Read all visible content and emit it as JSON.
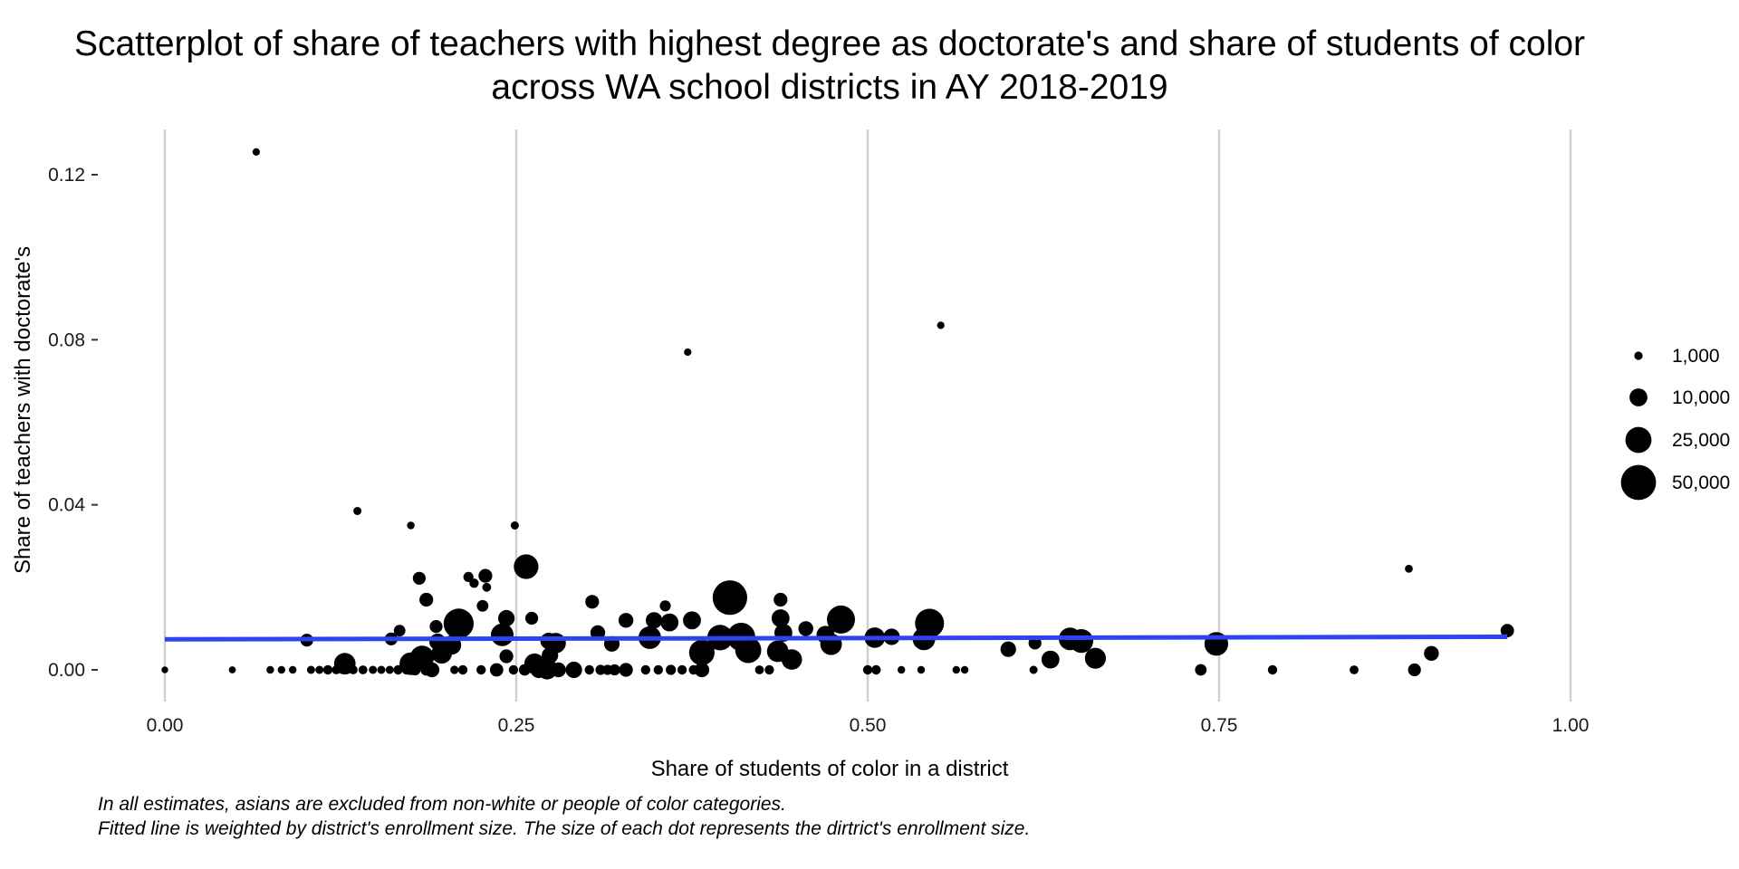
{
  "chart_data": {
    "type": "scatter",
    "title_line1": "Scatterplot of share of teachers with highest degree as doctorate's and share of students of color",
    "title_line2": "across WA school districts in AY 2018-2019",
    "xlabel": "Share of students of color in a district",
    "ylabel": "Share of teachers with doctorate's",
    "xlim": [
      0,
      1
    ],
    "ylim": [
      -0.007,
      0.13
    ],
    "x_ticks": [
      "0.00",
      "0.25",
      "0.50",
      "0.75",
      "1.00"
    ],
    "x_tick_values": [
      0,
      0.25,
      0.5,
      0.75,
      1.0
    ],
    "y_ticks": [
      "0.00",
      "0.04",
      "0.08",
      "0.12"
    ],
    "y_tick_values": [
      0,
      0.04,
      0.08,
      0.12
    ],
    "grid": "vertical major lines only",
    "legend_position": "right",
    "legend": [
      {
        "label": "1,000",
        "size": 1000
      },
      {
        "label": "10,000",
        "size": 10000
      },
      {
        "label": "25,000",
        "size": 25000
      },
      {
        "label": "50,000",
        "size": 50000
      }
    ],
    "fit_line": {
      "x": [
        0,
        0.955
      ],
      "y": [
        0.0074,
        0.008
      ],
      "color": "#2d45f0"
    },
    "caption_line1": "In all estimates, asians are excluded from non-white or people of color categories.",
    "caption_line2": "Fitted line is weighted by district's enrollment size. The size of each dot represents the dirtrict's enrollment size.",
    "points": [
      {
        "x": 0.065,
        "y": 0.1255,
        "size": 600
      },
      {
        "x": 0.552,
        "y": 0.0835,
        "size": 600
      },
      {
        "x": 0.372,
        "y": 0.077,
        "size": 600
      },
      {
        "x": 0.137,
        "y": 0.0385,
        "size": 900
      },
      {
        "x": 0.175,
        "y": 0.035,
        "size": 700
      },
      {
        "x": 0.249,
        "y": 0.035,
        "size": 900
      },
      {
        "x": 0.257,
        "y": 0.025,
        "size": 22000
      },
      {
        "x": 0.181,
        "y": 0.0222,
        "size": 4000
      },
      {
        "x": 0.216,
        "y": 0.0225,
        "size": 2000
      },
      {
        "x": 0.228,
        "y": 0.0228,
        "size": 5000
      },
      {
        "x": 0.22,
        "y": 0.021,
        "size": 1500
      },
      {
        "x": 0.229,
        "y": 0.02,
        "size": 1200
      },
      {
        "x": 0.402,
        "y": 0.0175,
        "size": 48000
      },
      {
        "x": 0.186,
        "y": 0.017,
        "size": 5000
      },
      {
        "x": 0.226,
        "y": 0.0155,
        "size": 3000
      },
      {
        "x": 0.304,
        "y": 0.0165,
        "size": 5000
      },
      {
        "x": 0.438,
        "y": 0.017,
        "size": 5000
      },
      {
        "x": 0.356,
        "y": 0.0155,
        "size": 2500
      },
      {
        "x": 0.209,
        "y": 0.0112,
        "size": 35000
      },
      {
        "x": 0.544,
        "y": 0.0113,
        "size": 32000
      },
      {
        "x": 0.481,
        "y": 0.0122,
        "size": 30000
      },
      {
        "x": 0.243,
        "y": 0.0125,
        "size": 8000
      },
      {
        "x": 0.261,
        "y": 0.0125,
        "size": 4000
      },
      {
        "x": 0.328,
        "y": 0.012,
        "size": 6000
      },
      {
        "x": 0.348,
        "y": 0.012,
        "size": 8000
      },
      {
        "x": 0.359,
        "y": 0.0115,
        "size": 10000
      },
      {
        "x": 0.375,
        "y": 0.012,
        "size": 10000
      },
      {
        "x": 0.438,
        "y": 0.0125,
        "size": 10000
      },
      {
        "x": 0.456,
        "y": 0.01,
        "size": 6000
      },
      {
        "x": 0.193,
        "y": 0.0105,
        "size": 4000
      },
      {
        "x": 0.167,
        "y": 0.0095,
        "size": 3000
      },
      {
        "x": 0.24,
        "y": 0.0085,
        "size": 18000
      },
      {
        "x": 0.308,
        "y": 0.009,
        "size": 6000
      },
      {
        "x": 0.345,
        "y": 0.0078,
        "size": 18000
      },
      {
        "x": 0.395,
        "y": 0.0078,
        "size": 24000
      },
      {
        "x": 0.41,
        "y": 0.008,
        "size": 30000
      },
      {
        "x": 0.44,
        "y": 0.009,
        "size": 10000
      },
      {
        "x": 0.47,
        "y": 0.0085,
        "size": 10000
      },
      {
        "x": 0.505,
        "y": 0.0078,
        "size": 14000
      },
      {
        "x": 0.517,
        "y": 0.008,
        "size": 8000
      },
      {
        "x": 0.54,
        "y": 0.0075,
        "size": 18000
      },
      {
        "x": 0.161,
        "y": 0.0075,
        "size": 4000
      },
      {
        "x": 0.101,
        "y": 0.0072,
        "size": 4000
      },
      {
        "x": 0.194,
        "y": 0.0068,
        "size": 8000
      },
      {
        "x": 0.204,
        "y": 0.006,
        "size": 12000
      },
      {
        "x": 0.273,
        "y": 0.007,
        "size": 8000
      },
      {
        "x": 0.278,
        "y": 0.0065,
        "size": 14000
      },
      {
        "x": 0.318,
        "y": 0.0063,
        "size": 7000
      },
      {
        "x": 0.474,
        "y": 0.0062,
        "size": 16000
      },
      {
        "x": 0.619,
        "y": 0.0065,
        "size": 4000
      },
      {
        "x": 0.644,
        "y": 0.0075,
        "size": 18000
      },
      {
        "x": 0.652,
        "y": 0.007,
        "size": 20000
      },
      {
        "x": 0.748,
        "y": 0.0063,
        "size": 20000
      },
      {
        "x": 0.955,
        "y": 0.0095,
        "size": 4500
      },
      {
        "x": 0.197,
        "y": 0.004,
        "size": 14000
      },
      {
        "x": 0.6,
        "y": 0.005,
        "size": 7000
      },
      {
        "x": 0.415,
        "y": 0.0048,
        "size": 25000
      },
      {
        "x": 0.436,
        "y": 0.0045,
        "size": 16000
      },
      {
        "x": 0.382,
        "y": 0.0042,
        "size": 24000
      },
      {
        "x": 0.183,
        "y": 0.003,
        "size": 20000
      },
      {
        "x": 0.243,
        "y": 0.0033,
        "size": 5000
      },
      {
        "x": 0.274,
        "y": 0.0035,
        "size": 8000
      },
      {
        "x": 0.446,
        "y": 0.0025,
        "size": 14000
      },
      {
        "x": 0.63,
        "y": 0.0025,
        "size": 10000
      },
      {
        "x": 0.662,
        "y": 0.0028,
        "size": 15000
      },
      {
        "x": 0.901,
        "y": 0.004,
        "size": 6000
      },
      {
        "x": 0.885,
        "y": 0.0245,
        "size": 800
      },
      {
        "x": 0.128,
        "y": 0.0015,
        "size": 16000
      },
      {
        "x": 0.175,
        "y": 0.0015,
        "size": 18000
      },
      {
        "x": 0.263,
        "y": 0.0015,
        "size": 14000
      },
      {
        "x": 0.271,
        "y": 0.0012,
        "size": 12000
      },
      {
        "x": 0.0,
        "y": 0.0,
        "size": 400
      },
      {
        "x": 0.048,
        "y": 0.0,
        "size": 500
      },
      {
        "x": 0.075,
        "y": 0.0,
        "size": 700
      },
      {
        "x": 0.083,
        "y": 0.0,
        "size": 700
      },
      {
        "x": 0.091,
        "y": 0.0,
        "size": 700
      },
      {
        "x": 0.104,
        "y": 0.0,
        "size": 900
      },
      {
        "x": 0.11,
        "y": 0.0,
        "size": 900
      },
      {
        "x": 0.116,
        "y": 0.0,
        "size": 1500
      },
      {
        "x": 0.122,
        "y": 0.0,
        "size": 1200
      },
      {
        "x": 0.134,
        "y": 0.0,
        "size": 1200
      },
      {
        "x": 0.141,
        "y": 0.0,
        "size": 1200
      },
      {
        "x": 0.148,
        "y": 0.0,
        "size": 900
      },
      {
        "x": 0.154,
        "y": 0.0,
        "size": 900
      },
      {
        "x": 0.16,
        "y": 0.0,
        "size": 900
      },
      {
        "x": 0.166,
        "y": 0.0,
        "size": 1500
      },
      {
        "x": 0.172,
        "y": 0.0,
        "size": 1500
      },
      {
        "x": 0.178,
        "y": 0.0,
        "size": 2500
      },
      {
        "x": 0.186,
        "y": 0.0,
        "size": 3000
      },
      {
        "x": 0.19,
        "y": 0.0,
        "size": 6000
      },
      {
        "x": 0.206,
        "y": 0.0,
        "size": 1000
      },
      {
        "x": 0.212,
        "y": 0.0,
        "size": 1500
      },
      {
        "x": 0.225,
        "y": 0.0,
        "size": 1500
      },
      {
        "x": 0.236,
        "y": 0.0,
        "size": 4500
      },
      {
        "x": 0.248,
        "y": 0.0,
        "size": 1500
      },
      {
        "x": 0.256,
        "y": 0.0,
        "size": 3000
      },
      {
        "x": 0.266,
        "y": 0.0,
        "size": 8000
      },
      {
        "x": 0.272,
        "y": 0.0,
        "size": 12000
      },
      {
        "x": 0.28,
        "y": 0.0,
        "size": 6000
      },
      {
        "x": 0.291,
        "y": 0.0,
        "size": 8000
      },
      {
        "x": 0.302,
        "y": 0.0,
        "size": 1500
      },
      {
        "x": 0.31,
        "y": 0.0,
        "size": 2000
      },
      {
        "x": 0.315,
        "y": 0.0,
        "size": 2000
      },
      {
        "x": 0.32,
        "y": 0.0,
        "size": 2500
      },
      {
        "x": 0.328,
        "y": 0.0,
        "size": 5000
      },
      {
        "x": 0.342,
        "y": 0.0,
        "size": 1500
      },
      {
        "x": 0.351,
        "y": 0.0,
        "size": 1500
      },
      {
        "x": 0.36,
        "y": 0.0,
        "size": 2000
      },
      {
        "x": 0.368,
        "y": 0.0,
        "size": 1500
      },
      {
        "x": 0.376,
        "y": 0.0,
        "size": 1500
      },
      {
        "x": 0.382,
        "y": 0.0,
        "size": 6000
      },
      {
        "x": 0.423,
        "y": 0.0,
        "size": 1200
      },
      {
        "x": 0.43,
        "y": 0.0,
        "size": 1500
      },
      {
        "x": 0.5,
        "y": 0.0,
        "size": 1500
      },
      {
        "x": 0.506,
        "y": 0.0,
        "size": 1500
      },
      {
        "x": 0.524,
        "y": 0.0,
        "size": 700
      },
      {
        "x": 0.538,
        "y": 0.0,
        "size": 700
      },
      {
        "x": 0.563,
        "y": 0.0,
        "size": 700
      },
      {
        "x": 0.569,
        "y": 0.0,
        "size": 700
      },
      {
        "x": 0.618,
        "y": 0.0,
        "size": 900
      },
      {
        "x": 0.737,
        "y": 0.0,
        "size": 3000
      },
      {
        "x": 0.788,
        "y": 0.0,
        "size": 1500
      },
      {
        "x": 0.846,
        "y": 0.0,
        "size": 1200
      },
      {
        "x": 0.889,
        "y": 0.0,
        "size": 4000
      }
    ]
  }
}
